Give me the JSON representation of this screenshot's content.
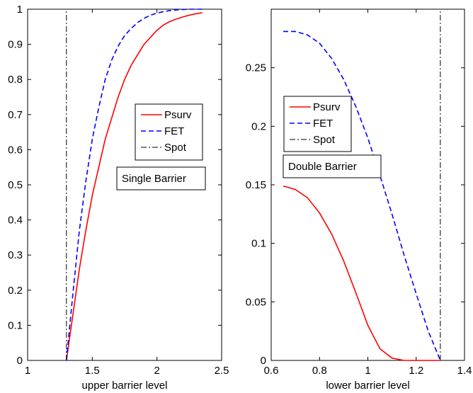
{
  "chart_data": [
    {
      "type": "line",
      "title": "",
      "xlabel": "upper barrier level",
      "ylabel": "",
      "xlim": [
        1,
        2.5
      ],
      "ylim": [
        0,
        1
      ],
      "xticks": [
        1,
        1.5,
        2,
        2.5
      ],
      "yticks": [
        0,
        0.1,
        0.2,
        0.3,
        0.4,
        0.5,
        0.6,
        0.7,
        0.8,
        0.9,
        1
      ],
      "xtick_labels": [
        "1",
        "1.5",
        "2",
        "2.5"
      ],
      "ytick_labels": [
        "0",
        "0.1",
        "0.2",
        "0.3",
        "0.4",
        "0.5",
        "0.6",
        "0.7",
        "0.8",
        "0.9",
        "1"
      ],
      "grid": false,
      "legend_placement": "center-right",
      "annotation": "Single Barrier",
      "series": [
        {
          "name": "Psurv",
          "color": "#ff0000",
          "style": "solid",
          "x": [
            1.3,
            1.35,
            1.4,
            1.45,
            1.5,
            1.55,
            1.6,
            1.65,
            1.7,
            1.75,
            1.8,
            1.85,
            1.9,
            1.95,
            2.0,
            2.05,
            2.1,
            2.15,
            2.2,
            2.25,
            2.3,
            2.35
          ],
          "y": [
            0.0,
            0.13,
            0.26,
            0.37,
            0.47,
            0.55,
            0.63,
            0.69,
            0.75,
            0.8,
            0.84,
            0.87,
            0.9,
            0.92,
            0.94,
            0.955,
            0.965,
            0.972,
            0.978,
            0.983,
            0.987,
            0.99
          ]
        },
        {
          "name": "FET",
          "color": "#0000ff",
          "style": "dashed",
          "x": [
            1.3,
            1.35,
            1.4,
            1.45,
            1.5,
            1.55,
            1.6,
            1.65,
            1.7,
            1.75,
            1.8,
            1.85,
            1.9,
            1.95,
            2.0,
            2.05,
            2.1,
            2.15,
            2.2,
            2.25,
            2.3,
            2.35
          ],
          "y": [
            0.0,
            0.19,
            0.37,
            0.51,
            0.63,
            0.72,
            0.8,
            0.855,
            0.895,
            0.925,
            0.945,
            0.962,
            0.974,
            0.983,
            0.989,
            0.993,
            0.996,
            0.998,
            0.999,
            1.0,
            1.0,
            1.0
          ]
        },
        {
          "name": "Spot",
          "color": "#000000",
          "style": "dashdot",
          "x": [
            1.3,
            1.3
          ],
          "y": [
            0,
            1
          ]
        }
      ]
    },
    {
      "type": "line",
      "title": "",
      "xlabel": "lower barrier level",
      "ylabel": "",
      "xlim": [
        0.6,
        1.4
      ],
      "ylim": [
        0,
        0.3
      ],
      "xticks": [
        0.6,
        0.8,
        1.0,
        1.2,
        1.4
      ],
      "yticks": [
        0,
        0.05,
        0.1,
        0.15,
        0.2,
        0.25
      ],
      "xtick_labels": [
        "0.6",
        "0.8",
        "1",
        "1.2",
        "1.4"
      ],
      "ytick_labels": [
        "0",
        "0.05",
        "0.1",
        "0.15",
        "0.2",
        "0.25"
      ],
      "grid": false,
      "legend_placement": "upper-left",
      "annotation": "Double Barrier",
      "series": [
        {
          "name": "Psurv",
          "color": "#ff0000",
          "style": "solid",
          "x": [
            0.65,
            0.7,
            0.75,
            0.8,
            0.85,
            0.9,
            0.95,
            1.0,
            1.05,
            1.1,
            1.15,
            1.2,
            1.25,
            1.3
          ],
          "y": [
            0.149,
            0.146,
            0.139,
            0.126,
            0.108,
            0.085,
            0.058,
            0.03,
            0.01,
            0.002,
            0.0,
            0.0,
            0.0,
            0.0
          ]
        },
        {
          "name": "FET",
          "color": "#0000ff",
          "style": "dashed",
          "x": [
            0.65,
            0.7,
            0.75,
            0.8,
            0.85,
            0.9,
            0.95,
            1.0,
            1.05,
            1.1,
            1.15,
            1.2,
            1.25,
            1.3
          ],
          "y": [
            0.281,
            0.281,
            0.278,
            0.271,
            0.258,
            0.24,
            0.217,
            0.19,
            0.158,
            0.125,
            0.09,
            0.057,
            0.025,
            0.0
          ]
        },
        {
          "name": "Spot",
          "color": "#000000",
          "style": "dashdot",
          "x": [
            1.3,
            1.3
          ],
          "y": [
            0,
            0.3
          ]
        }
      ]
    }
  ]
}
